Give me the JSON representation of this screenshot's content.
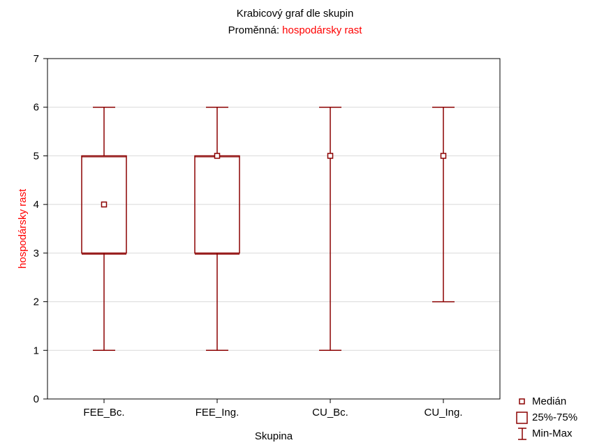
{
  "chart_data": {
    "type": "box",
    "title": "Krabicový graf dle skupin",
    "subtitle_prefix": "Proměnná:",
    "subtitle_variable": "hospodársky rast",
    "xlabel": "Skupina",
    "ylabel": "hospodársky rast",
    "ylim": [
      0,
      7
    ],
    "yticks": [
      0,
      1,
      2,
      3,
      4,
      5,
      6,
      7
    ],
    "grid": true,
    "categories": [
      "FEE_Bc.",
      "FEE_Ing.",
      "CU_Bc.",
      "CU_Ing."
    ],
    "boxes": [
      {
        "group": "FEE_Bc.",
        "min": 1,
        "q1": 3,
        "median": 4,
        "q3": 5,
        "max": 6
      },
      {
        "group": "FEE_Ing.",
        "min": 1,
        "q1": 3,
        "median": 5,
        "q3": 5,
        "max": 6
      },
      {
        "group": "CU_Bc.",
        "min": 1,
        "q1": 5,
        "median": 5,
        "q3": 5,
        "max": 6
      },
      {
        "group": "CU_Ing.",
        "min": 2,
        "q1": 5,
        "median": 5,
        "q3": 5,
        "max": 6
      }
    ],
    "legend_position": "bottom-right",
    "legend": [
      "Medián",
      "25%-75%",
      "Min-Max"
    ],
    "colors": {
      "box": "#8b0000",
      "highlight_text": "#ff0000",
      "grid": "#d9d9d9"
    }
  }
}
